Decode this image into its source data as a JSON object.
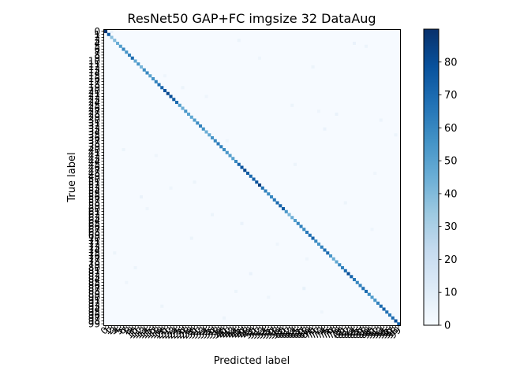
{
  "chart_data": {
    "type": "heatmap",
    "title": "ResNet50 GAP+FC imgsize 32 DataAug",
    "xlabel": "Predicted label",
    "ylabel": "True label",
    "n_classes": 100,
    "class_labels_start": 0,
    "class_labels_end": 99,
    "colormap": "Blues",
    "color_range": [
      0,
      90
    ],
    "colorbar_ticks": [
      0,
      10,
      20,
      30,
      40,
      50,
      60,
      70,
      80
    ],
    "diagonal_values": [
      89,
      75,
      38,
      40,
      45,
      52,
      60,
      55,
      62,
      70,
      48,
      55,
      42,
      58,
      60,
      50,
      55,
      62,
      68,
      72,
      78,
      82,
      80,
      75,
      70,
      52,
      45,
      55,
      50,
      48,
      52,
      58,
      62,
      56,
      45,
      48,
      55,
      60,
      65,
      62,
      58,
      55,
      52,
      50,
      60,
      72,
      78,
      82,
      75,
      70,
      72,
      78,
      85,
      68,
      62,
      58,
      60,
      65,
      70,
      72,
      75,
      55,
      42,
      45,
      52,
      60,
      62,
      58,
      65,
      68,
      72,
      60,
      55,
      62,
      68,
      70,
      55,
      45,
      48,
      60,
      62,
      70,
      80,
      72,
      65,
      60,
      62,
      68,
      70,
      58,
      52,
      55,
      62,
      70,
      72,
      68,
      65,
      70,
      80,
      75
    ],
    "off_diagonal": [
      {
        "true": 0,
        "pred": 2,
        "value": 6
      },
      {
        "true": 3,
        "pred": 45,
        "value": 5
      },
      {
        "true": 4,
        "pred": 84,
        "value": 6
      },
      {
        "true": 5,
        "pred": 88,
        "value": 5
      },
      {
        "true": 9,
        "pred": 52,
        "value": 4
      },
      {
        "true": 12,
        "pred": 70,
        "value": 5
      },
      {
        "true": 15,
        "pred": 20,
        "value": 4
      },
      {
        "true": 19,
        "pred": 26,
        "value": 5
      },
      {
        "true": 22,
        "pred": 34,
        "value": 4
      },
      {
        "true": 25,
        "pred": 63,
        "value": 5
      },
      {
        "true": 27,
        "pred": 72,
        "value": 4
      },
      {
        "true": 28,
        "pred": 78,
        "value": 6
      },
      {
        "true": 30,
        "pred": 93,
        "value": 5
      },
      {
        "true": 33,
        "pred": 74,
        "value": 6
      },
      {
        "true": 35,
        "pred": 98,
        "value": 5
      },
      {
        "true": 37,
        "pred": 41,
        "value": 4
      },
      {
        "true": 40,
        "pred": 6,
        "value": 5
      },
      {
        "true": 42,
        "pred": 17,
        "value": 4
      },
      {
        "true": 45,
        "pred": 64,
        "value": 5
      },
      {
        "true": 48,
        "pred": 91,
        "value": 4
      },
      {
        "true": 51,
        "pred": 30,
        "value": 5
      },
      {
        "true": 53,
        "pred": 22,
        "value": 4
      },
      {
        "true": 56,
        "pred": 12,
        "value": 6
      },
      {
        "true": 58,
        "pred": 81,
        "value": 5
      },
      {
        "true": 60,
        "pred": 14,
        "value": 4
      },
      {
        "true": 62,
        "pred": 36,
        "value": 5
      },
      {
        "true": 65,
        "pred": 46,
        "value": 6
      },
      {
        "true": 67,
        "pred": 90,
        "value": 4
      },
      {
        "true": 70,
        "pred": 29,
        "value": 5
      },
      {
        "true": 72,
        "pred": 58,
        "value": 4
      },
      {
        "true": 75,
        "pred": 3,
        "value": 5
      },
      {
        "true": 77,
        "pred": 68,
        "value": 4
      },
      {
        "true": 80,
        "pred": 10,
        "value": 5
      },
      {
        "true": 82,
        "pred": 49,
        "value": 6
      },
      {
        "true": 85,
        "pred": 7,
        "value": 4
      },
      {
        "true": 87,
        "pred": 67,
        "value": 7
      },
      {
        "true": 88,
        "pred": 44,
        "value": 5
      },
      {
        "true": 90,
        "pred": 55,
        "value": 4
      },
      {
        "true": 93,
        "pred": 19,
        "value": 5
      },
      {
        "true": 95,
        "pred": 73,
        "value": 4
      },
      {
        "true": 97,
        "pred": 40,
        "value": 5
      }
    ]
  }
}
